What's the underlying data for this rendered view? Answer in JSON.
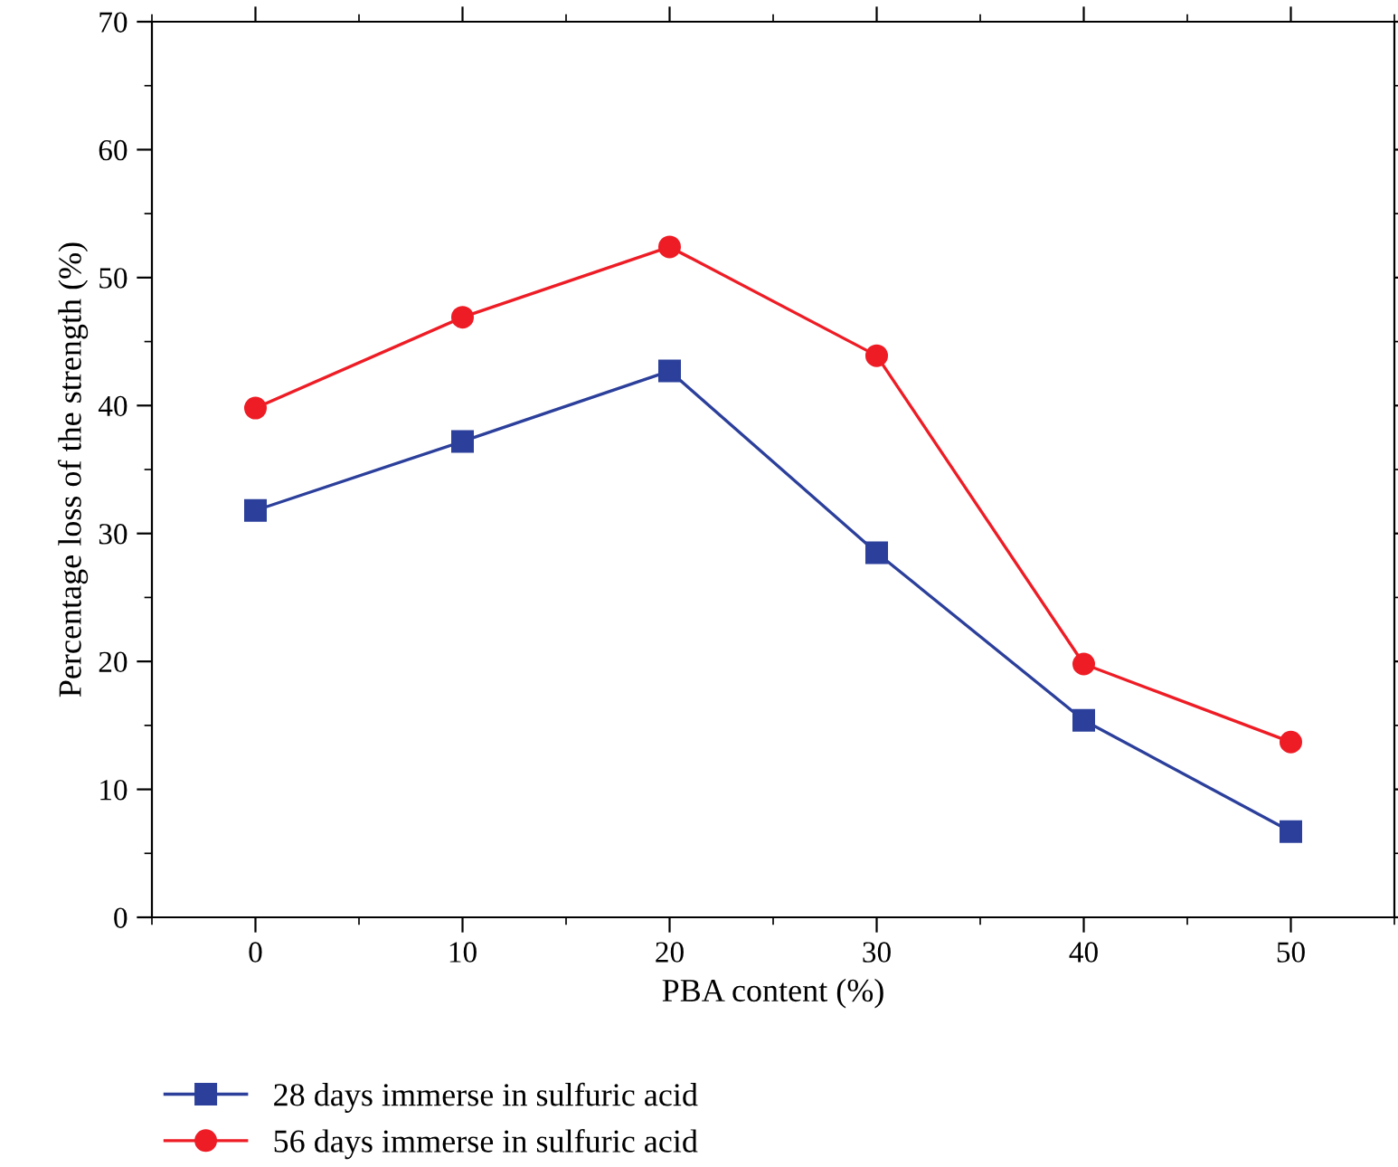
{
  "chart_data": {
    "type": "line",
    "xlabel": "PBA content (%)",
    "ylabel": "Percentage loss of the strength (%)",
    "x": [
      0,
      10,
      20,
      30,
      40,
      50
    ],
    "series": [
      {
        "name": "28 days immerse in sulfuric acid",
        "color": "#2b3f9b",
        "marker": "square",
        "values": [
          31.8,
          37.2,
          42.7,
          28.5,
          15.4,
          6.7
        ]
      },
      {
        "name": "56 days immerse in sulfuric acid",
        "color": "#ee1c25",
        "marker": "circle",
        "values": [
          39.8,
          46.9,
          52.4,
          43.9,
          19.8,
          13.7
        ]
      }
    ],
    "xlim": [
      -5,
      55
    ],
    "xticks": [
      0,
      10,
      20,
      30,
      40,
      50
    ],
    "ylim": [
      0,
      70
    ],
    "yticks": [
      0,
      10,
      20,
      30,
      40,
      50,
      60,
      70
    ],
    "grid": false,
    "legend": "bottom left",
    "line_style": "solid"
  }
}
